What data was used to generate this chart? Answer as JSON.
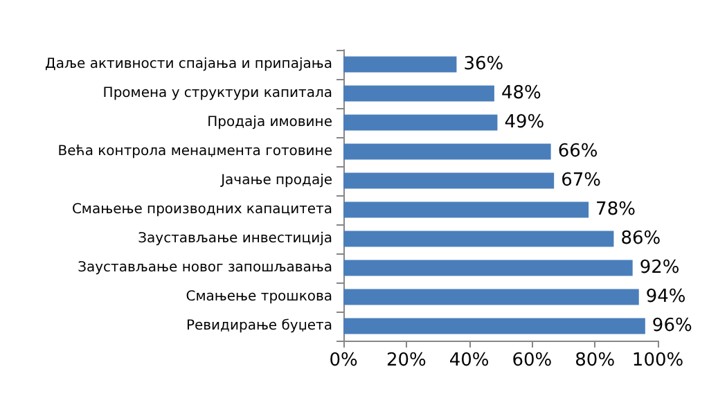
{
  "chart_data": {
    "type": "bar",
    "orientation": "horizontal",
    "categories": [
      "Даље активности спајања и припајања",
      "Промена у структури капитала",
      "Продаја имовине",
      "Већа контрола менаџмента готовине",
      "Јачање продаје",
      "Смањење производних капацитета",
      "Заустављање инвестиција",
      "Заустављање новог запошљавања",
      "Смањење трошкова",
      "Ревидирање буџета"
    ],
    "values": [
      36,
      48,
      49,
      66,
      67,
      78,
      86,
      92,
      94,
      96
    ],
    "value_labels": [
      "36%",
      "48%",
      "49%",
      "66%",
      "67%",
      "78%",
      "86%",
      "92%",
      "94%",
      "96%"
    ],
    "color": "#4a7ebb",
    "xlim": [
      0,
      100
    ],
    "xticks": [
      {
        "value": 0,
        "label": "0%"
      },
      {
        "value": 20,
        "label": "20%"
      },
      {
        "value": 40,
        "label": "40%"
      },
      {
        "value": 60,
        "label": "60%"
      },
      {
        "value": 80,
        "label": "80%"
      },
      {
        "value": 100,
        "label": "100%"
      }
    ],
    "grid": false
  }
}
